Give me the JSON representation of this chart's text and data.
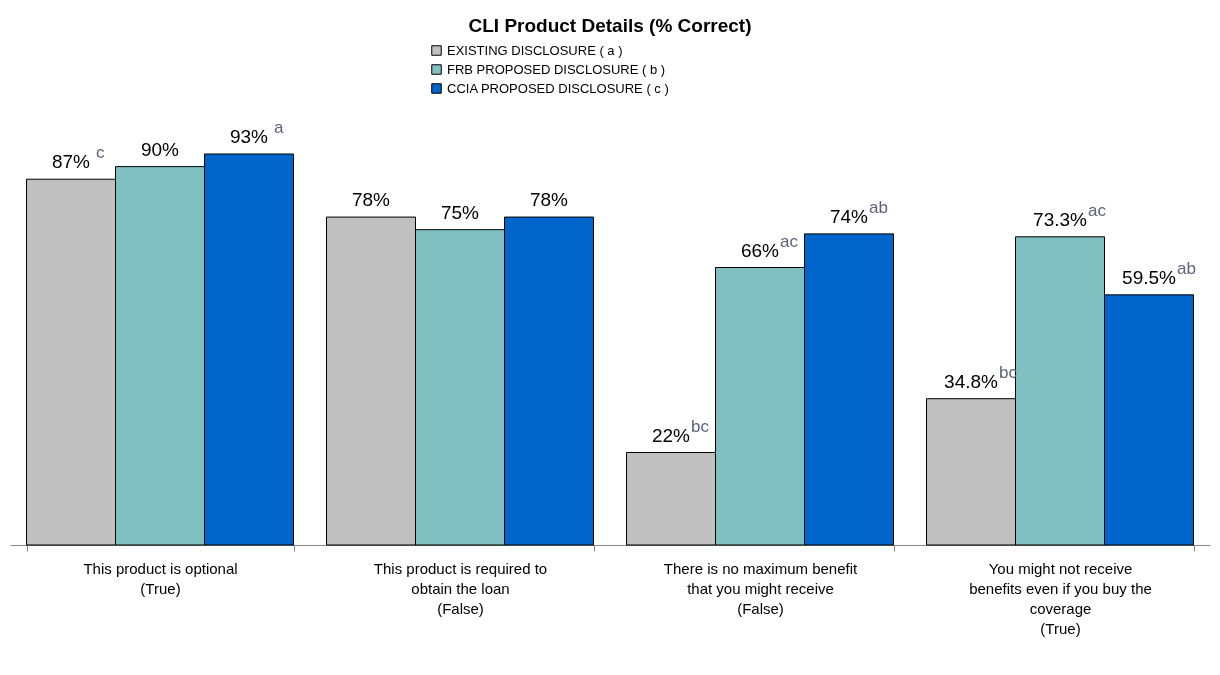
{
  "chart_data": {
    "type": "bar",
    "title": "CLI Product Details (% Correct)",
    "categories": [
      "This product is optional\n(True)",
      "This product is required to\nobtain the loan\n(False)",
      "There is no maximum benefit\nthat you might receive\n(False)",
      "You might not receive\nbenefits even if you buy the\ncoverage\n(True)"
    ],
    "series": [
      {
        "name": "EXISTING DISCLOSURE ( a )",
        "color": "#c0c0c0",
        "values": [
          87,
          78,
          22,
          34.8
        ],
        "value_labels": [
          "87% $^{c}$",
          "78%",
          "22%$^{bc}$",
          "34.8%$^{bc}$"
        ]
      },
      {
        "name": "FRB PROPOSED DISCLOSURE ( b )",
        "color": "#80c0c0",
        "values": [
          90,
          75,
          66,
          73.3
        ],
        "value_labels": [
          "90%",
          "75%",
          "66%$^{ac}$",
          "73.3%$^{ac}$"
        ]
      },
      {
        "name": "CCIA PROPOSED DISCLOSURE ( c )",
        "color": "#0066cc",
        "values": [
          93,
          78,
          74,
          59.5
        ],
        "value_labels": [
          "93% $^{a}$",
          "78%",
          "74%$^{ab}$",
          "59.5%$^{ab}$"
        ]
      }
    ],
    "legend": "top",
    "grid": false
  }
}
